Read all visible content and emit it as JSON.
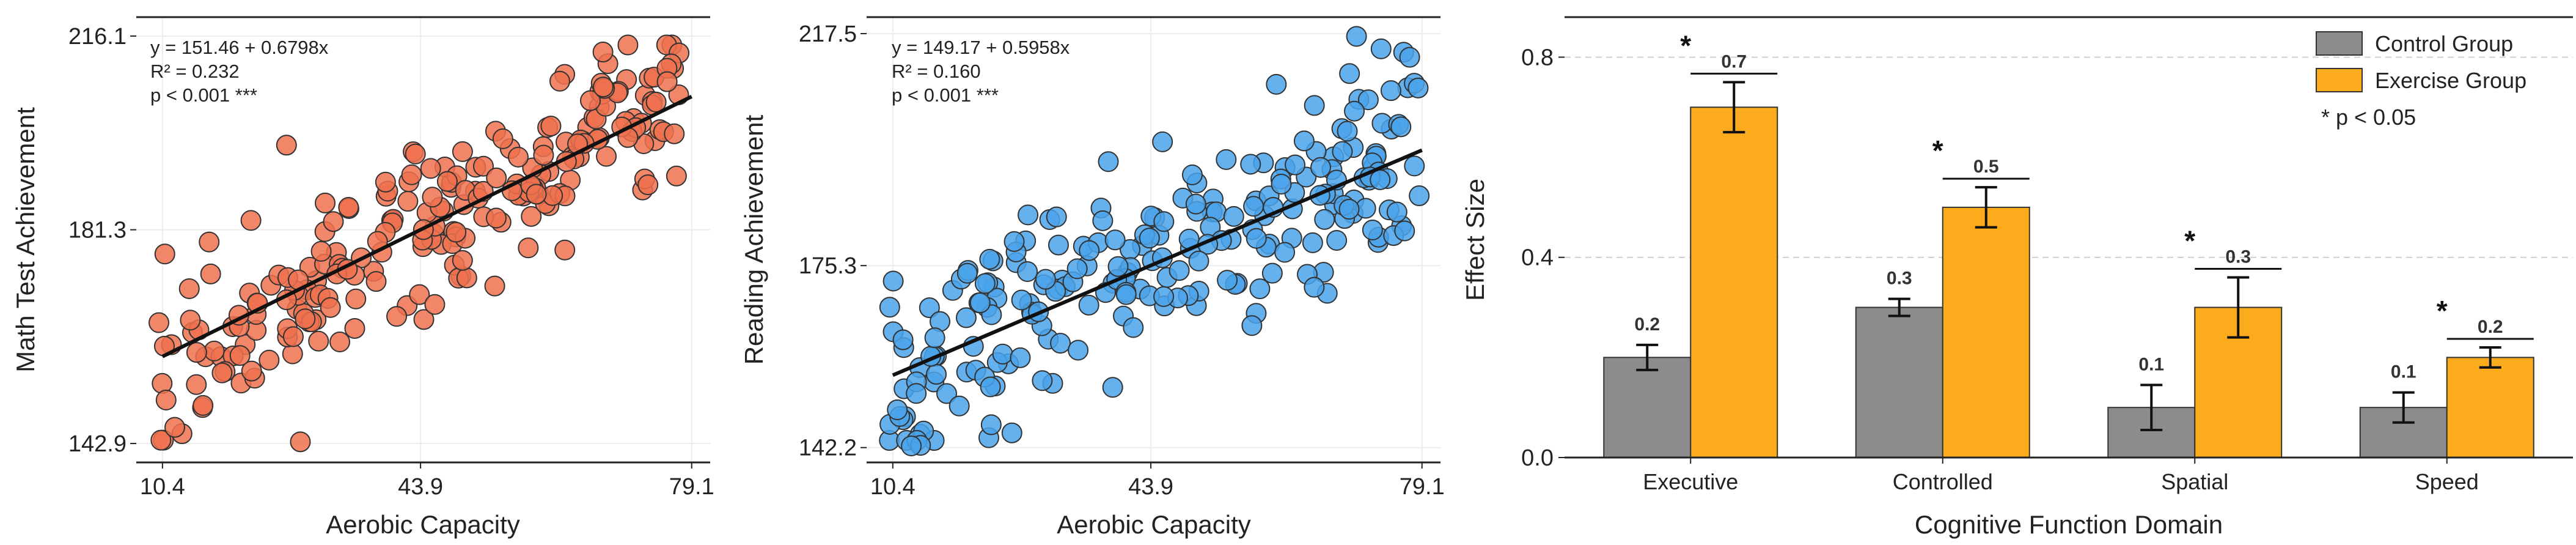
{
  "chart_data": [
    {
      "type": "scatter",
      "id": "math",
      "xlabel": "Aerobic Capacity",
      "ylabel": "Math Test Achievement",
      "xlim": [
        7,
        81.5
      ],
      "ylim": [
        139.5,
        219.5
      ],
      "xticks": [
        10.4,
        43.9,
        79.1
      ],
      "xtick_labels": [
        "10.4",
        "43.9",
        "79.1"
      ],
      "yticks": [
        142.9,
        181.3,
        216.1
      ],
      "ytick_labels": [
        "142.9",
        "181.3",
        "216.1"
      ],
      "point_color": "#f0714f",
      "fit": {
        "intercept": 151.46,
        "slope": 0.6798,
        "x_range": [
          10.4,
          79.1
        ]
      },
      "stats": [
        "y = 151.46 + 0.6798x",
        "R² = 0.232",
        "p < 0.001 ***"
      ],
      "seed": 7,
      "n_points": 235,
      "noise_sd": 7.8,
      "outliers": [
        {
          "x": 28.3,
          "y": 143.2
        },
        {
          "x": 26.5,
          "y": 196.5
        },
        {
          "x": 12.0,
          "y": 145.8
        }
      ]
    },
    {
      "type": "scatter",
      "id": "reading",
      "xlabel": "Aerobic Capacity",
      "ylabel": "Reading Achievement",
      "xlim": [
        7,
        81.5
      ],
      "ylim": [
        139.5,
        220.5
      ],
      "xticks": [
        10.4,
        43.9,
        79.1
      ],
      "xtick_labels": [
        "10.4",
        "43.9",
        "79.1"
      ],
      "yticks": [
        142.2,
        175.3,
        217.5
      ],
      "ytick_labels": [
        "142.2",
        "175.3",
        "217.5"
      ],
      "point_color": "#4aa3ea",
      "fit": {
        "intercept": 149.17,
        "slope": 0.5958,
        "x_range": [
          10.4,
          79.1
        ]
      },
      "stats": [
        "y = 149.17 + 0.5958x",
        "R² = 0.160",
        "p < 0.001 ***"
      ],
      "seed": 19,
      "n_points": 235,
      "noise_sd": 9.0,
      "outliers": [
        {
          "x": 70.6,
          "y": 217.0
        },
        {
          "x": 14.0,
          "y": 142.6
        },
        {
          "x": 12.8,
          "y": 142.5
        },
        {
          "x": 77.5,
          "y": 213.2
        }
      ]
    },
    {
      "type": "bar",
      "id": "effects",
      "xlabel": "Cognitive Function Domain",
      "ylabel": "Effect Size",
      "categories": [
        "Executive",
        "Controlled",
        "Spatial",
        "Speed"
      ],
      "ylim": [
        0,
        0.88
      ],
      "yticks": [
        0.0,
        0.4,
        0.8
      ],
      "ytick_labels": [
        "0.0",
        "0.4",
        "0.8"
      ],
      "series": [
        {
          "name": "Control Group",
          "color": "#8c8c8c",
          "values": [
            0.2,
            0.3,
            0.1,
            0.1
          ],
          "errors": [
            0.025,
            0.017,
            0.045,
            0.03
          ],
          "labels": [
            "0.2",
            "0.3",
            "0.1",
            "0.1"
          ]
        },
        {
          "name": "Exercise Group",
          "color": "#fcab1c",
          "values": [
            0.7,
            0.5,
            0.3,
            0.2
          ],
          "errors": [
            0.05,
            0.04,
            0.06,
            0.02
          ],
          "labels": [
            "0.7",
            "0.5",
            "0.3",
            "0.2"
          ]
        }
      ],
      "significance": [
        "*",
        "*",
        "*",
        "*"
      ],
      "legend_note": "* p < 0.05",
      "legend_position": "top-right",
      "grid": true
    }
  ]
}
